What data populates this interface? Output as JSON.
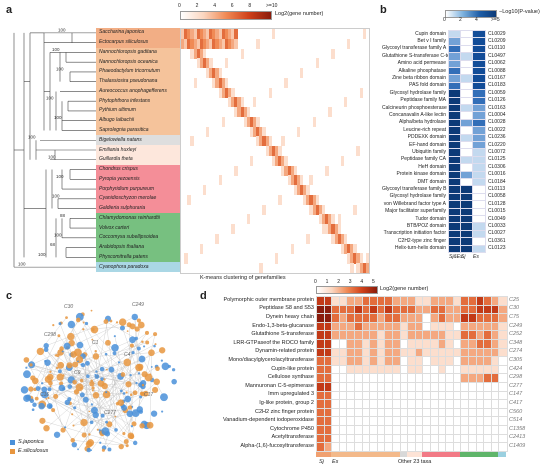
{
  "panels": {
    "a": "a",
    "b": "b",
    "c": "c",
    "d": "d"
  },
  "a": {
    "legend_title": "Log2(gene number)",
    "legend_ticks": [
      "0",
      "2",
      "4",
      "6",
      "8",
      ">=10"
    ],
    "taxa": [
      "Saccharina japonica",
      "Ectocarpus siliculosus",
      "Nannochloropsis gaditana",
      "Nannochloropsis oceanica",
      "Phaeodactylum tricornutum",
      "Thalassiosira pseudonana",
      "Aureococcus anophagefferens",
      "Phytophthora infestans",
      "Pythium ultimum",
      "Albugo laibachii",
      "Saprolegnia parasitica",
      "Bigelowiella natans",
      "Emiliania huxleyi",
      "Guillardia theta",
      "Chondrus crispus",
      "Pyropia yezoensis",
      "Porphyridium purpureum",
      "Cyanidioschyzon merolae",
      "Galdieria sulphuraria",
      "Chlamydomonas reinhardtii",
      "Volvox carteri",
      "Coccomyxa subellipsoidea",
      "Arabidopsis thaliana",
      "Physcomitrella patens",
      "Cyanophora paradoxa"
    ],
    "bootstrap": [
      "100",
      "100",
      "100",
      "100",
      "100",
      "100",
      "100",
      "100",
      "100",
      "100",
      "100",
      "100",
      "100",
      "100",
      "100",
      "100",
      "100",
      "100",
      "100",
      "88",
      "70",
      "100",
      "68",
      "100",
      "100"
    ],
    "xlabel": "K-means clustering of genefamilies",
    "group_colors": [
      "#f0a070",
      "#f0a070",
      "#f3b98a",
      "#f3b98a",
      "#f3b98a",
      "#f3b98a",
      "#f3b98a",
      "#f3b98a",
      "#f3b98a",
      "#f3b98a",
      "#f3b98a",
      "#d8d8d8",
      "#fde3d6",
      "#fde3d6",
      "#f27a86",
      "#f27a86",
      "#f27a86",
      "#f27a86",
      "#f27a86",
      "#5fb56a",
      "#5fb56a",
      "#5fb56a",
      "#5fb56a",
      "#5fb56a",
      "#9bd0e0"
    ]
  },
  "b": {
    "legend_title": "−Log10(P-value)",
    "legend_ticks": [
      "0",
      "2",
      "4",
      ">=5"
    ],
    "col_labels": [
      "Sj&Es",
      "Sj",
      "Es"
    ],
    "rows": [
      {
        "name": "Cupin domain",
        "id": "CL0029"
      },
      {
        "name": "Bet v I family",
        "id": "CL0209"
      },
      {
        "name": "Glycosyl transferase family A",
        "id": "CL0110"
      },
      {
        "name": "Glutathione S-transferase C-term",
        "id": "CL0497"
      },
      {
        "name": "Amino acid permease",
        "id": "CL0062"
      },
      {
        "name": "Alkaline phosphatase",
        "id": "CL0088"
      },
      {
        "name": "Zine beta ribbon domain",
        "id": "CL0167"
      },
      {
        "name": "PAS fold domain",
        "id": "CL0183"
      },
      {
        "name": "Glycosyl hydrolase family",
        "id": "CL0059"
      },
      {
        "name": "Peptidase family MA",
        "id": "CL0126"
      },
      {
        "name": "Calcineurin phosphoesterase",
        "id": "CL0163"
      },
      {
        "name": "Concanavalin A-like lectin",
        "id": "CL0004"
      },
      {
        "name": "Alpha/beta hydrolase",
        "id": "CL0028"
      },
      {
        "name": "Leucine-rich repeat",
        "id": "CL0022"
      },
      {
        "name": "PDDEXK domain",
        "id": "CL0236"
      },
      {
        "name": "EF-hand domain",
        "id": "CL0220"
      },
      {
        "name": "Ubiquitin family",
        "id": "CL0072"
      },
      {
        "name": "Peptidase family CA",
        "id": "CL0125"
      },
      {
        "name": "HeH domain",
        "id": "CL0306"
      },
      {
        "name": "Protein kinase domain",
        "id": "CL0016"
      },
      {
        "name": "DMT domain",
        "id": "CL0184"
      },
      {
        "name": "Glycosyl transferase family B",
        "id": "CL0113"
      },
      {
        "name": "Glycosyl hydrolase family",
        "id": "CL0058"
      },
      {
        "name": "von Willebrand factor type A",
        "id": "CL0128"
      },
      {
        "name": "Major facilitator superfamily",
        "id": "CL0015"
      },
      {
        "name": "Tudor domain",
        "id": "CL0049"
      },
      {
        "name": "BTB/POZ domain",
        "id": "CL0033"
      },
      {
        "name": "Transcription initiation factor",
        "id": "CL0027"
      },
      {
        "name": "C2H2-type zinc finger",
        "id": "CL0361"
      },
      {
        "name": "Helix-turn-helix domain",
        "id": "CL0123"
      }
    ],
    "values": [
      [
        1,
        0,
        4
      ],
      [
        2,
        0,
        4
      ],
      [
        3,
        0,
        4
      ],
      [
        2,
        1,
        4
      ],
      [
        2,
        0,
        4
      ],
      [
        3,
        0,
        4
      ],
      [
        2,
        1,
        4
      ],
      [
        3,
        0,
        4
      ],
      [
        5,
        0,
        3
      ],
      [
        5,
        0,
        3
      ],
      [
        5,
        1,
        2
      ],
      [
        5,
        0,
        2
      ],
      [
        5,
        2,
        3
      ],
      [
        5,
        0,
        2
      ],
      [
        5,
        1,
        2
      ],
      [
        5,
        0,
        2
      ],
      [
        5,
        0,
        1
      ],
      [
        5,
        1,
        1
      ],
      [
        5,
        0,
        1
      ],
      [
        5,
        2,
        1
      ],
      [
        5,
        0,
        1
      ],
      [
        5,
        5,
        0
      ],
      [
        5,
        5,
        0
      ],
      [
        5,
        5,
        0
      ],
      [
        5,
        5,
        0
      ],
      [
        5,
        5,
        0
      ],
      [
        5,
        5,
        1
      ],
      [
        5,
        5,
        1
      ],
      [
        5,
        5,
        0
      ],
      [
        5,
        5,
        1
      ]
    ]
  },
  "c": {
    "legend": [
      {
        "label": "S.japonica",
        "color": "#4a90d9"
      },
      {
        "label": "E.siliculosus",
        "color": "#e8963f"
      }
    ],
    "node_labels": [
      "C30",
      "C249",
      "C298",
      "C1",
      "C4",
      "C9",
      "C16",
      "C277",
      "C17"
    ]
  },
  "d": {
    "legend_title": "Log2(gene number)",
    "legend_ticks": [
      "0",
      "1",
      "2",
      "3",
      "4",
      "5"
    ],
    "rows": [
      {
        "name": "Polymorphic outer membrane protein",
        "id": "C25"
      },
      {
        "name": "Peptidase S8 and S53",
        "id": "C30"
      },
      {
        "name": "Dynein heavy chain",
        "id": "C75"
      },
      {
        "name": "Endo-1,3-beta-glucanase",
        "id": "C249"
      },
      {
        "name": "Glutathione S-transferase",
        "id": "C252"
      },
      {
        "name": "LRR-GTPaseof the ROCO family",
        "id": "C348"
      },
      {
        "name": "Dynamin-related protein",
        "id": "C274"
      },
      {
        "name": "Mono/diacylglycerolacyltransferase",
        "id": "C305"
      },
      {
        "name": "Cupin-like protein",
        "id": "C424"
      },
      {
        "name": "Cellulose synthase",
        "id": "C298"
      },
      {
        "name": "Mannuronan C-5-epimerase",
        "id": "C277"
      },
      {
        "name": "Imm upregulated 3",
        "id": "C147"
      },
      {
        "name": "Ig-like protein, group 2",
        "id": "C417"
      },
      {
        "name": "C2H2 zinc finger protein",
        "id": "C560"
      },
      {
        "name": "Vanadium-dependent iodoperoxidase",
        "id": "C514"
      },
      {
        "name": "Cytochrome P450",
        "id": "C1358"
      },
      {
        "name": "Acetyltransferase",
        "id": "C2413"
      },
      {
        "name": "Alpha-(1,6)-fucosyltransferase",
        "id": "C1409"
      }
    ],
    "bottom_labels": {
      "sj": "Sj",
      "es": "Es",
      "other": "Other 23 taxa"
    },
    "col_colors": [
      "#f0a070",
      "#f0a070",
      "#f3b98a",
      "#f3b98a",
      "#f3b98a",
      "#f3b98a",
      "#f3b98a",
      "#f3b98a",
      "#f3b98a",
      "#f3b98a",
      "#f3b98a",
      "#d8d8d8",
      "#fde3d6",
      "#fde3d6",
      "#f27a86",
      "#f27a86",
      "#f27a86",
      "#f27a86",
      "#f27a86",
      "#5fb56a",
      "#5fb56a",
      "#5fb56a",
      "#5fb56a",
      "#5fb56a",
      "#9bd0e0"
    ],
    "values": [
      [
        4,
        4,
        1,
        1,
        2,
        2,
        3,
        3,
        3,
        3,
        2,
        2,
        2,
        1,
        1,
        2,
        2,
        2,
        1,
        3,
        3,
        4,
        3,
        2,
        1
      ],
      [
        5,
        5,
        3,
        3,
        3,
        4,
        3,
        4,
        3,
        4,
        3,
        3,
        3,
        2,
        2,
        3,
        3,
        2,
        2,
        3,
        3,
        4,
        4,
        4,
        2
      ],
      [
        5,
        5,
        3,
        2,
        3,
        3,
        3,
        3,
        2,
        3,
        3,
        2,
        2,
        2,
        0,
        2,
        3,
        2,
        2,
        4,
        4,
        3,
        3,
        3,
        2
      ],
      [
        4,
        4,
        2,
        2,
        2,
        3,
        2,
        2,
        2,
        2,
        2,
        1,
        2,
        2,
        0,
        1,
        1,
        1,
        0,
        2,
        2,
        2,
        2,
        2,
        1
      ],
      [
        4,
        4,
        2,
        2,
        2,
        2,
        2,
        2,
        1,
        2,
        2,
        1,
        2,
        2,
        2,
        2,
        2,
        1,
        1,
        3,
        3,
        2,
        3,
        2,
        1
      ],
      [
        4,
        4,
        0,
        0,
        2,
        2,
        1,
        2,
        1,
        2,
        2,
        0,
        1,
        1,
        1,
        1,
        2,
        1,
        0,
        2,
        2,
        3,
        3,
        2,
        1
      ],
      [
        4,
        4,
        1,
        1,
        2,
        2,
        1,
        2,
        1,
        2,
        2,
        1,
        1,
        2,
        1,
        1,
        1,
        1,
        1,
        2,
        2,
        2,
        2,
        2,
        1
      ],
      [
        3,
        3,
        1,
        1,
        2,
        2,
        1,
        2,
        1,
        2,
        2,
        0,
        1,
        1,
        0,
        1,
        1,
        1,
        0,
        2,
        2,
        2,
        2,
        1,
        0
      ],
      [
        3,
        3,
        0,
        0,
        1,
        1,
        1,
        1,
        1,
        1,
        1,
        0,
        1,
        1,
        0,
        0,
        1,
        0,
        0,
        1,
        1,
        1,
        1,
        1,
        0
      ],
      [
        3,
        3,
        0,
        0,
        0,
        0,
        0,
        0,
        0,
        0,
        0,
        0,
        0,
        0,
        0,
        0,
        0,
        0,
        0,
        2,
        2,
        2,
        3,
        3,
        0
      ],
      [
        4,
        4,
        0,
        0,
        0,
        0,
        0,
        0,
        0,
        0,
        0,
        0,
        0,
        0,
        0,
        0,
        0,
        0,
        0,
        0,
        0,
        0,
        0,
        0,
        0
      ],
      [
        3,
        3,
        0,
        0,
        0,
        0,
        0,
        0,
        0,
        0,
        0,
        0,
        0,
        0,
        0,
        0,
        0,
        0,
        0,
        0,
        0,
        0,
        0,
        0,
        0
      ],
      [
        3,
        3,
        0,
        0,
        0,
        0,
        0,
        0,
        0,
        0,
        0,
        0,
        0,
        0,
        0,
        0,
        0,
        0,
        0,
        0,
        0,
        0,
        0,
        0,
        0
      ],
      [
        3,
        3,
        0,
        0,
        0,
        0,
        0,
        0,
        0,
        0,
        0,
        0,
        0,
        0,
        0,
        0,
        0,
        0,
        0,
        0,
        0,
        0,
        0,
        0,
        0
      ],
      [
        3,
        3,
        0,
        0,
        0,
        0,
        0,
        0,
        0,
        0,
        0,
        0,
        0,
        0,
        0,
        0,
        0,
        0,
        0,
        0,
        0,
        0,
        0,
        0,
        0
      ],
      [
        3,
        3,
        0,
        0,
        0,
        0,
        0,
        0,
        0,
        0,
        0,
        0,
        0,
        0,
        0,
        0,
        0,
        0,
        0,
        0,
        0,
        0,
        0,
        0,
        0
      ],
      [
        3,
        3,
        0,
        0,
        0,
        0,
        0,
        0,
        0,
        0,
        0,
        0,
        0,
        0,
        0,
        0,
        0,
        0,
        0,
        0,
        0,
        0,
        0,
        0,
        0
      ],
      [
        3,
        2,
        0,
        0,
        0,
        0,
        0,
        0,
        0,
        0,
        0,
        0,
        0,
        0,
        0,
        0,
        0,
        0,
        0,
        0,
        0,
        0,
        0,
        0,
        0
      ]
    ]
  }
}
